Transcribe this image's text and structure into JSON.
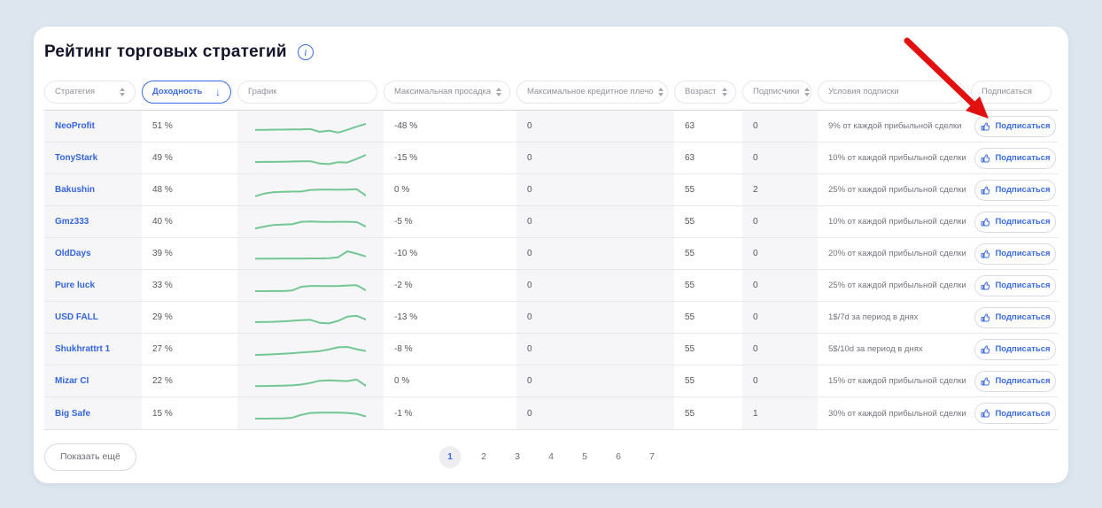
{
  "title": "Рейтинг торговых стратегий",
  "icons": {
    "info": "i",
    "sort_desc": "↓"
  },
  "colors": {
    "accent_blue": "#3b6be4",
    "spark_green": "#72c793",
    "arrow_red": "#e31010",
    "shade": "#f6f6f8"
  },
  "columns": [
    {
      "label": "Стратегия",
      "sortable": true,
      "active": false
    },
    {
      "label": "Доходность",
      "sortable": true,
      "active": true
    },
    {
      "label": "График",
      "sortable": false,
      "active": false
    },
    {
      "label": "Максимальная просадка",
      "sortable": true,
      "active": false
    },
    {
      "label": "Максимальное кредитное плечо",
      "sortable": true,
      "active": false
    },
    {
      "label": "Возраст",
      "sortable": true,
      "active": false
    },
    {
      "label": "Подписчики",
      "sortable": true,
      "active": false
    },
    {
      "label": "Условия подписки",
      "sortable": false,
      "active": false
    },
    {
      "label": "Подписаться",
      "sortable": false,
      "active": false
    }
  ],
  "rows": [
    {
      "name": "NeoProfit",
      "profit": "51 %",
      "drawdown": "-48 %",
      "leverage": "0",
      "age": "63",
      "subscribers": "0",
      "terms": "9% от каждой прибыльной сделки",
      "subscribe": "Подписаться",
      "spark": [
        35,
        35,
        36,
        36,
        37,
        38,
        40,
        22,
        30,
        18,
        35,
        55,
        72
      ]
    },
    {
      "name": "TonyStark",
      "profit": "49 %",
      "drawdown": "-15 %",
      "leverage": "0",
      "age": "63",
      "subscribers": "0",
      "terms": "10% от каждой прибыльной сделки",
      "subscribe": "Подписаться",
      "spark": [
        33,
        34,
        34,
        35,
        36,
        37,
        38,
        24,
        20,
        32,
        30,
        52,
        78
      ]
    },
    {
      "name": "Bakushin",
      "profit": "48 %",
      "drawdown": "0 %",
      "leverage": "0",
      "age": "55",
      "subscribers": "2",
      "terms": "25% от каждой прибыльной сделки",
      "subscribe": "Подписаться",
      "spark": [
        18,
        35,
        44,
        46,
        47,
        48,
        58,
        60,
        60,
        59,
        60,
        62,
        22
      ]
    },
    {
      "name": "Gmz333",
      "profit": "40 %",
      "drawdown": "-5 %",
      "leverage": "0",
      "age": "55",
      "subscribers": "0",
      "terms": "10% от каждой прибыльной сделки",
      "subscribe": "Подписаться",
      "spark": [
        16,
        28,
        38,
        40,
        42,
        58,
        60,
        58,
        57,
        58,
        58,
        56,
        28
      ]
    },
    {
      "name": "OldDays",
      "profit": "39 %",
      "drawdown": "-10 %",
      "leverage": "0",
      "age": "55",
      "subscribers": "0",
      "terms": "20% от каждой прибыльной сделки",
      "subscribe": "Подписаться",
      "spark": [
        26,
        26,
        26,
        27,
        27,
        27,
        28,
        28,
        29,
        35,
        72,
        58,
        40
      ]
    },
    {
      "name": "Pure luck",
      "profit": "33 %",
      "drawdown": "-2 %",
      "leverage": "0",
      "age": "55",
      "subscribers": "0",
      "terms": "25% от каждой прибыльной сделки",
      "subscribe": "Подписаться",
      "spark": [
        22,
        22,
        23,
        23,
        26,
        50,
        55,
        55,
        54,
        55,
        58,
        60,
        28
      ]
    },
    {
      "name": "USD FALL",
      "profit": "29 %",
      "drawdown": "-13 %",
      "leverage": "0",
      "age": "55",
      "subscribers": "0",
      "terms": "1$/7d за период в днях",
      "subscribe": "Подписаться",
      "spark": [
        28,
        29,
        30,
        33,
        36,
        40,
        42,
        24,
        20,
        36,
        62,
        68,
        44
      ]
    },
    {
      "name": "Shukhrattrt 1",
      "profit": "27 %",
      "drawdown": "-8 %",
      "leverage": "0",
      "age": "55",
      "subscribers": "0",
      "terms": "5$/10d за период в днях",
      "subscribe": "Подписаться",
      "spark": [
        22,
        24,
        26,
        29,
        33,
        37,
        41,
        46,
        56,
        70,
        72,
        58,
        46
      ]
    },
    {
      "name": "Mizar CI",
      "profit": "22 %",
      "drawdown": "0 %",
      "leverage": "0",
      "age": "55",
      "subscribers": "0",
      "terms": "15% от каждой прибыльной сделки",
      "subscribe": "Подписаться",
      "spark": [
        26,
        27,
        28,
        29,
        31,
        36,
        46,
        60,
        62,
        60,
        58,
        68,
        28
      ]
    },
    {
      "name": "Big Safe",
      "profit": "15 %",
      "drawdown": "-1 %",
      "leverage": "0",
      "age": "55",
      "subscribers": "1",
      "terms": "30% от каждой прибыльной сделки",
      "subscribe": "Подписаться",
      "spark": [
        22,
        22,
        23,
        24,
        27,
        46,
        58,
        60,
        60,
        60,
        58,
        52,
        36
      ]
    }
  ],
  "footer": {
    "show_more": "Показать ещё",
    "pages": [
      "1",
      "2",
      "3",
      "4",
      "5",
      "6",
      "7"
    ],
    "active_page": "1"
  }
}
